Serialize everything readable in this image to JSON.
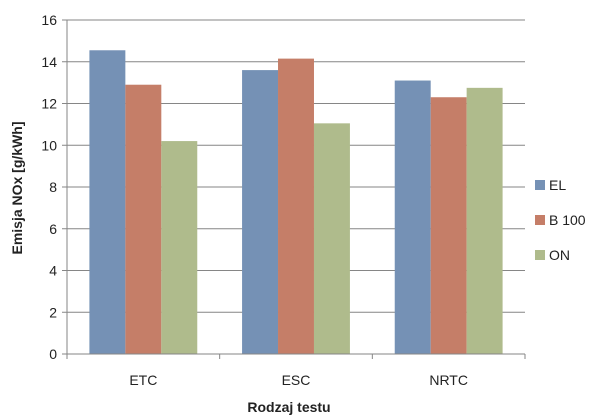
{
  "chart_data": {
    "type": "bar",
    "title": "",
    "xlabel": "Rodzaj testu",
    "ylabel": "Emisja NOx [g/kWh]",
    "categories": [
      "ETC",
      "ESC",
      "NRTC"
    ],
    "series": [
      {
        "name": "EL",
        "color": "#7591b5",
        "values": [
          14.55,
          13.6,
          13.1
        ]
      },
      {
        "name": "B 100",
        "color": "#c57e68",
        "values": [
          12.9,
          14.15,
          12.3
        ]
      },
      {
        "name": "ON",
        "color": "#afbb8c",
        "values": [
          10.2,
          11.05,
          12.75
        ]
      }
    ],
    "ylim": [
      0,
      16
    ],
    "y_ticks": [
      "0",
      "2",
      "4",
      "6",
      "8",
      "10",
      "12",
      "14",
      "16"
    ],
    "grid": true,
    "legend_position": "right"
  }
}
